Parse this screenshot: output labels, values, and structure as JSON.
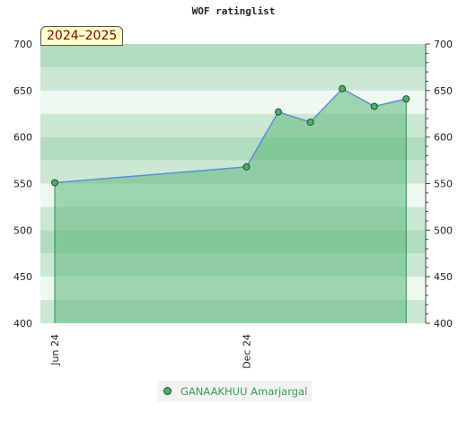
{
  "chart_data": {
    "type": "area",
    "title": "WOF ratinglist",
    "season_label": "2024–2025",
    "ylim": [
      400,
      700
    ],
    "yticks": [
      400,
      450,
      500,
      550,
      600,
      650,
      700
    ],
    "x_tick_labels": [
      "Jun 24",
      "Dec 24"
    ],
    "series": [
      {
        "name": "GANAAKHUU Amarjargal",
        "points": [
          {
            "date": "2024-06",
            "rating": 551
          },
          {
            "date": "2024-12",
            "rating": 568
          },
          {
            "date": "2025-01",
            "rating": 627
          },
          {
            "date": "2025-02",
            "rating": 616
          },
          {
            "date": "2025-03",
            "rating": 652
          },
          {
            "date": "2025-04",
            "rating": 633
          },
          {
            "date": "2025-05",
            "rating": 641
          }
        ]
      }
    ],
    "grid": true,
    "legend_position": "bottom",
    "colors": {
      "area_fill": "#5cb878",
      "line": "#5b8fd6",
      "marker": "#4caf6d",
      "band_dark": "#b2dcbf",
      "band_mid": "#cbe8d4",
      "band_light": "#eef8f1"
    }
  }
}
